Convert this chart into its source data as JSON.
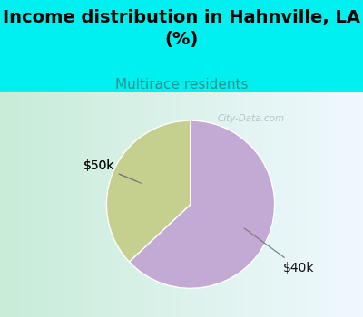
{
  "title": "Income distribution in Hahnville, LA\n(%)",
  "subtitle": "Multirace residents",
  "slices": [
    {
      "label": "$50k",
      "value": 37,
      "color": "#c5cf8e"
    },
    {
      "label": "$40k",
      "value": 63,
      "color": "#c3aad4"
    }
  ],
  "bg_color": "#00f0f0",
  "chart_bg_left": "#c8ecd8",
  "chart_bg_right": "#e8f0f8",
  "title_fontsize": 14,
  "subtitle_fontsize": 11,
  "subtitle_color": "#2a9090",
  "label_color": "#111111",
  "label_fontsize": 10,
  "startangle": 90,
  "watermark": "City-Data.com"
}
